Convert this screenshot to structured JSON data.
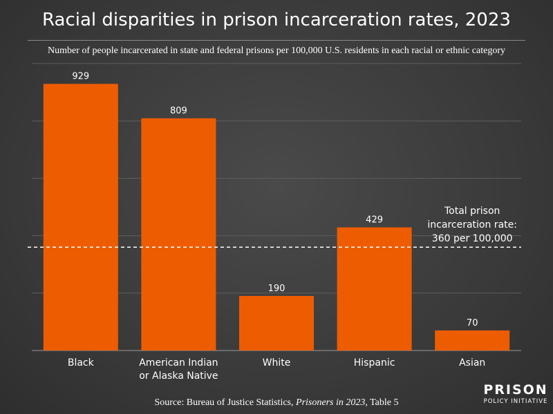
{
  "header": {
    "title": "Racial disparities in prison incarceration rates, 2023",
    "subtitle": "Number of people incarcerated in state and federal prisons per 100,000 U.S. residents in each racial or ethnic category"
  },
  "chart_data": {
    "type": "bar",
    "title": "Racial disparities in prison incarceration rates, 2023",
    "subtitle": "Number of people incarcerated in state and federal prisons per 100,000 U.S. residents in each racial or ethnic category",
    "categories": [
      "Black",
      "American Indian or Alaska Native",
      "White",
      "Hispanic",
      "Asian"
    ],
    "category_lines": [
      [
        "Black"
      ],
      [
        "American Indian",
        "or Alaska Native"
      ],
      [
        "White"
      ],
      [
        "Hispanic"
      ],
      [
        "Asian"
      ]
    ],
    "values": [
      929,
      809,
      190,
      429,
      70
    ],
    "data_labels": [
      "929",
      "809",
      "190",
      "429",
      "70"
    ],
    "ylim": [
      0,
      1000
    ],
    "grid": true,
    "bar_color": "#ee5c00",
    "reference_line": {
      "value": 360,
      "style": "dashed",
      "label_lines": [
        "Total prison",
        "incarceration rate:",
        "360 per 100,000"
      ]
    }
  },
  "footer": {
    "source_prefix": "Source: Bureau of Justice Statistics, ",
    "source_title": "Prisoners in 2023",
    "source_suffix": ", Table 5"
  },
  "logo": {
    "line1": "PRISON",
    "line2": "POLICY INITIATIVE"
  }
}
